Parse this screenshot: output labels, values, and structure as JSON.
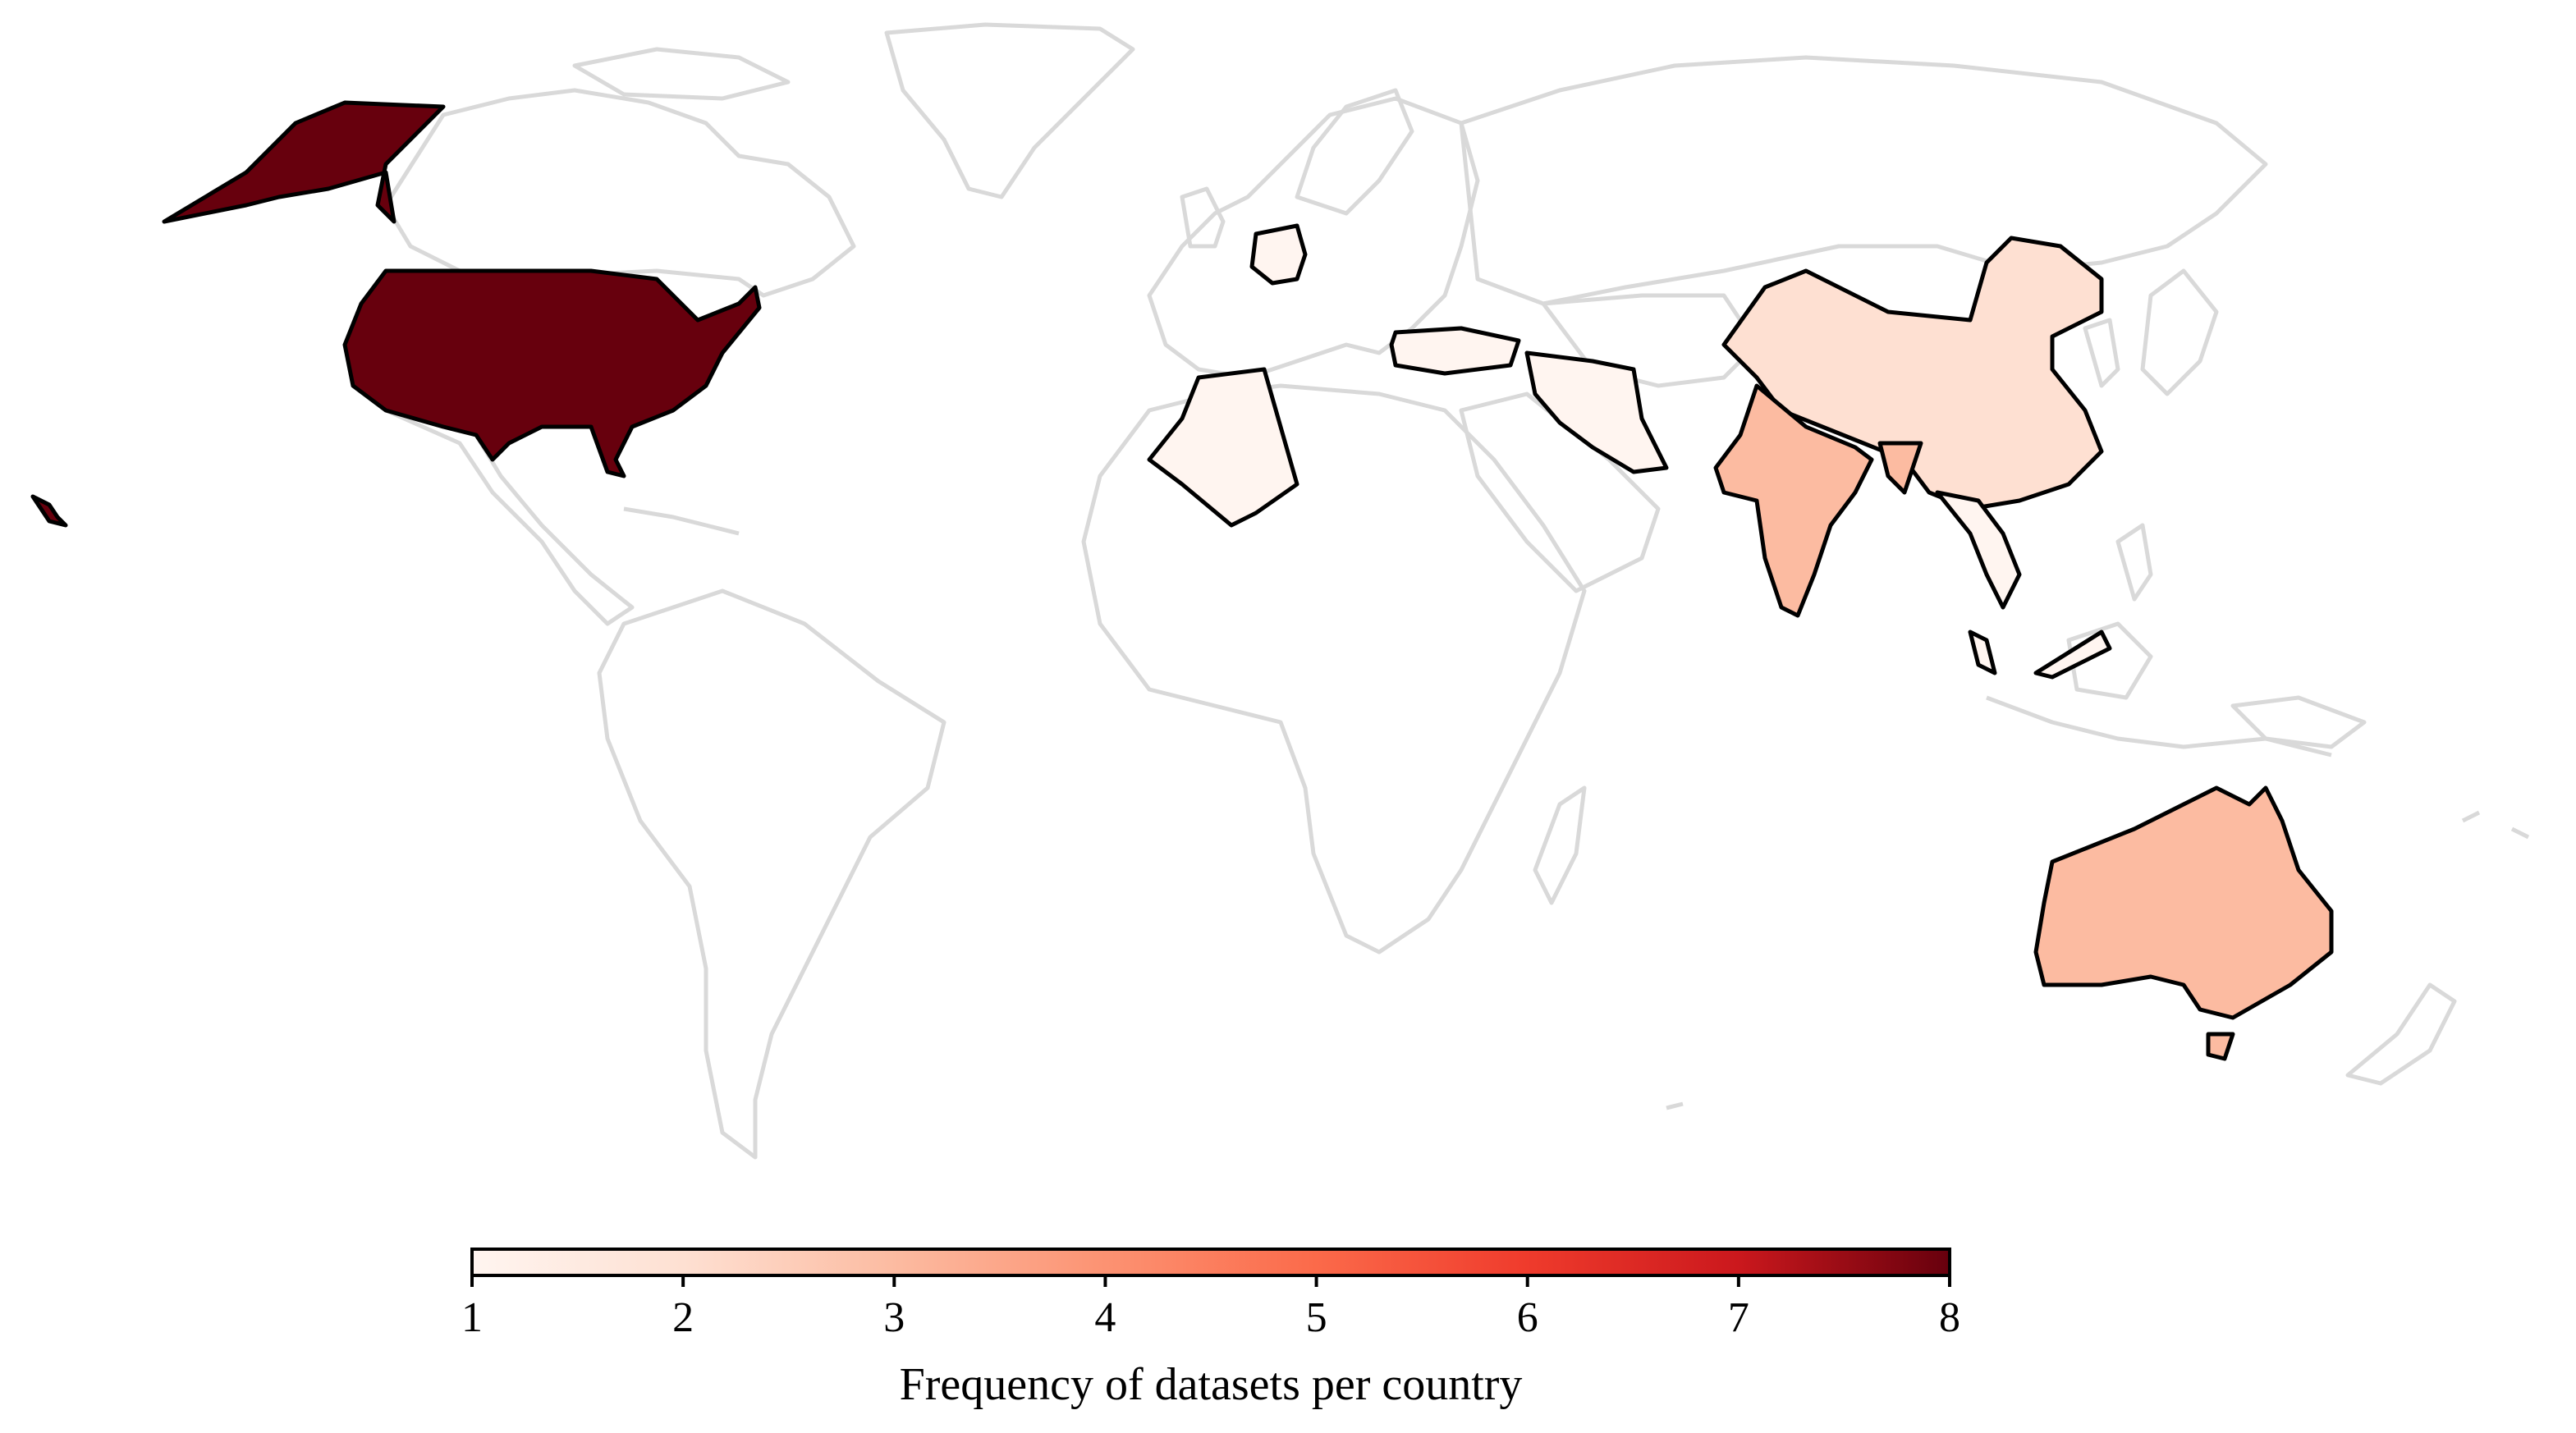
{
  "map": {
    "colormap": "Reds",
    "colorbar": {
      "min": 1,
      "max": 8,
      "ticks": [
        "1",
        "2",
        "3",
        "4",
        "5",
        "6",
        "7",
        "8"
      ],
      "label": "Frequency of datasets per country",
      "orientation": "horizontal",
      "placement": "bottom"
    },
    "colors": {
      "border_default": "#d9d9d9",
      "border_highlight": "#000000",
      "scale": [
        "#fff5f0",
        "#fee0d2",
        "#fcbba1",
        "#fc9272",
        "#fb6a4a",
        "#ef3b2c",
        "#cb181d",
        "#67000d"
      ]
    },
    "highlighted_countries": [
      {
        "key": "usa",
        "value": 8
      },
      {
        "key": "germany",
        "value": 1
      },
      {
        "key": "algeria",
        "value": 1
      },
      {
        "key": "turkey",
        "value": 1
      },
      {
        "key": "iran",
        "value": 1
      },
      {
        "key": "china",
        "value": 2
      },
      {
        "key": "india",
        "value": 3
      },
      {
        "key": "bangladesh",
        "value": 3
      },
      {
        "key": "australia",
        "value": 3
      },
      {
        "key": "thailand",
        "value": 1
      },
      {
        "key": "malaysia",
        "value": 1
      }
    ]
  }
}
